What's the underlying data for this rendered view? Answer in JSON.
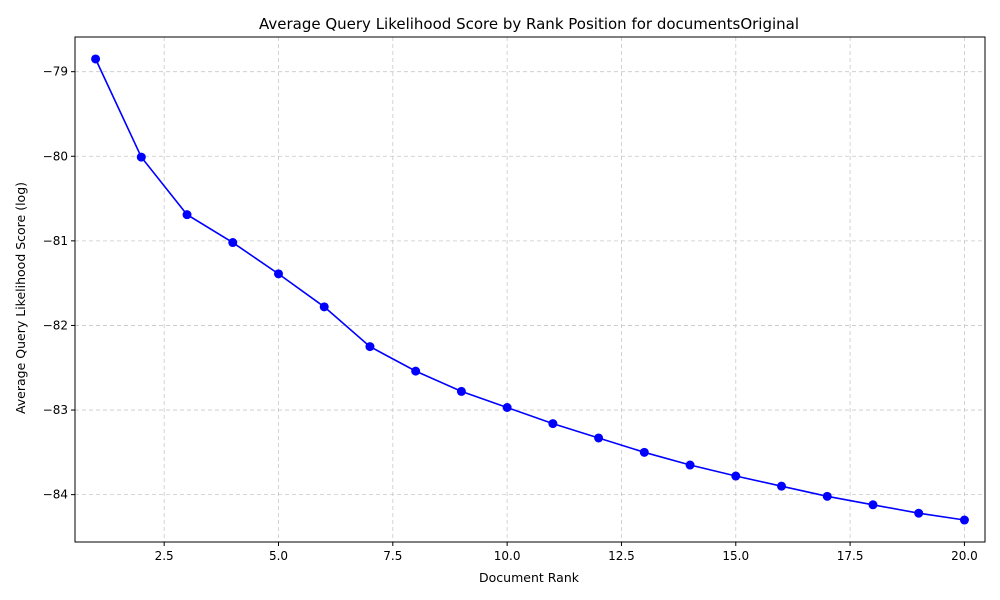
{
  "chart_data": {
    "type": "line",
    "title": "Average Query Likelihood Score by Rank Position for documentsOriginal",
    "xlabel": "Document Rank",
    "ylabel": "Average Query Likelihood Score (log)",
    "x": [
      1,
      2,
      3,
      4,
      5,
      6,
      7,
      8,
      9,
      10,
      11,
      12,
      13,
      14,
      15,
      16,
      17,
      18,
      19,
      20
    ],
    "series": [
      {
        "values": [
          -78.85,
          -80.01,
          -80.69,
          -81.02,
          -81.39,
          -81.78,
          -82.25,
          -82.54,
          -82.78,
          -82.97,
          -83.16,
          -83.33,
          -83.5,
          -83.65,
          -83.78,
          -83.9,
          -84.02,
          -84.12,
          -84.22,
          -84.3
        ],
        "color": "#0000ff",
        "marker": "circle"
      }
    ],
    "xlim": [
      0.55,
      20.45
    ],
    "ylim": [
      -84.56,
      -78.59
    ],
    "xticks": [
      2.5,
      5.0,
      7.5,
      10.0,
      12.5,
      15.0,
      17.5,
      20.0
    ],
    "xtick_labels": [
      "2.5",
      "5.0",
      "7.5",
      "10.0",
      "12.5",
      "15.0",
      "17.5",
      "20.0"
    ],
    "yticks": [
      -79,
      -80,
      -81,
      -82,
      -83,
      -84
    ],
    "ytick_labels": [
      "−79",
      "−80",
      "−81",
      "−82",
      "−83",
      "−84"
    ],
    "grid": true,
    "grid_style": "dashed",
    "grid_color": "#c8c8c8"
  }
}
